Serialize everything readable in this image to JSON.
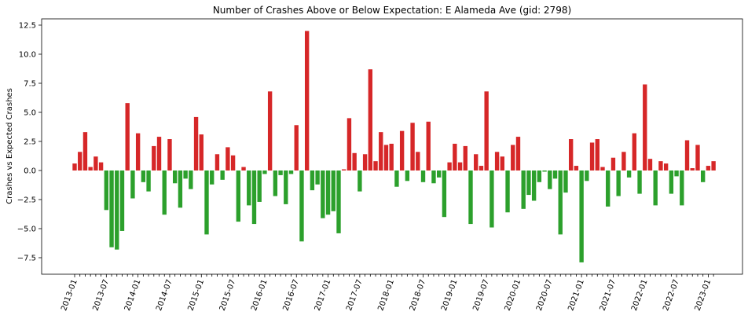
{
  "chart_data": {
    "type": "bar",
    "title": "Number of Crashes Above or Below Expectation: E Alameda Ave (gid: 2798)",
    "y_label": "Crashes vs Expected Crashes",
    "positive_color": "#d62728",
    "negative_color": "#2ca02c",
    "categories": [
      "2013-01",
      null,
      null,
      null,
      null,
      null,
      "2013-07",
      null,
      null,
      null,
      null,
      null,
      "2014-01",
      null,
      null,
      null,
      null,
      null,
      "2014-07",
      null,
      null,
      null,
      null,
      null,
      "2015-01",
      null,
      null,
      null,
      null,
      null,
      "2015-07",
      null,
      null,
      null,
      null,
      null,
      "2016-01",
      null,
      null,
      null,
      null,
      null,
      "2016-07",
      null,
      null,
      null,
      null,
      null,
      "2017-01",
      null,
      null,
      null,
      null,
      null,
      "2017-07",
      null,
      null,
      null,
      null,
      null,
      "2018-01",
      null,
      null,
      null,
      null,
      null,
      "2018-07",
      null,
      null,
      null,
      null,
      null,
      "2019-01",
      null,
      null,
      null,
      null,
      null,
      "2019-07",
      null,
      null,
      null,
      null,
      null,
      "2020-01",
      null,
      null,
      null,
      null,
      null,
      "2020-07",
      null,
      null,
      null,
      null,
      null,
      "2021-01",
      null,
      null,
      null,
      null,
      null,
      "2021-07",
      null,
      null,
      null,
      null,
      null,
      "2022-01",
      null,
      null,
      null,
      null,
      null,
      "2022-07",
      null,
      null,
      null,
      null,
      null,
      "2023-01",
      null
    ],
    "values": [
      0.6,
      1.6,
      3.3,
      0.3,
      1.2,
      0.7,
      -3.4,
      -6.6,
      -6.8,
      -5.2,
      5.8,
      -2.4,
      3.2,
      -1.0,
      -1.8,
      2.1,
      2.9,
      -3.8,
      2.7,
      -1.1,
      -3.2,
      -0.7,
      -1.6,
      4.6,
      3.1,
      -5.5,
      -1.2,
      1.4,
      -0.8,
      2.0,
      1.3,
      -4.4,
      0.3,
      -3.0,
      -4.6,
      -2.7,
      -0.3,
      6.8,
      -2.2,
      -0.4,
      -2.9,
      -0.3,
      3.9,
      -6.1,
      12.0,
      -1.7,
      -1.2,
      -4.1,
      -3.8,
      -3.5,
      -5.4,
      0.1,
      4.5,
      1.5,
      -1.8,
      1.4,
      8.7,
      0.8,
      3.3,
      2.2,
      2.3,
      -1.4,
      3.4,
      -0.9,
      4.1,
      1.6,
      -1.0,
      4.2,
      -1.1,
      -0.6,
      -4.0,
      0.7,
      2.3,
      0.7,
      2.1,
      -4.6,
      1.4,
      0.4,
      6.8,
      -4.9,
      1.6,
      1.2,
      -3.6,
      2.2,
      2.9,
      -3.3,
      -2.1,
      -2.6,
      -1.0,
      -0.1,
      -1.6,
      -0.7,
      -5.5,
      -1.9,
      2.7,
      0.4,
      -7.9,
      -0.9,
      2.4,
      2.7,
      0.3,
      -3.1,
      1.1,
      -2.2,
      1.6,
      -0.6,
      3.2,
      -2.0,
      7.4,
      1.0,
      -3.0,
      0.8,
      0.6,
      -2.0,
      -0.5,
      -3.0,
      2.6,
      0.2,
      2.2,
      -1.0,
      0.4,
      0.8
    ],
    "ylim": [
      -8.92,
      13.04
    ],
    "yticks": [
      {
        "value": -7.5,
        "label": "−7.5"
      },
      {
        "value": -5,
        "label": "−5.0"
      },
      {
        "value": -2.5,
        "label": "−2.5"
      },
      {
        "value": 0,
        "label": "0.0"
      },
      {
        "value": 2.5,
        "label": "2.5"
      },
      {
        "value": 5,
        "label": "5.0"
      },
      {
        "value": 7.5,
        "label": "7.5"
      },
      {
        "value": 10,
        "label": "10.0"
      },
      {
        "value": 12.5,
        "label": "12.5"
      }
    ]
  }
}
